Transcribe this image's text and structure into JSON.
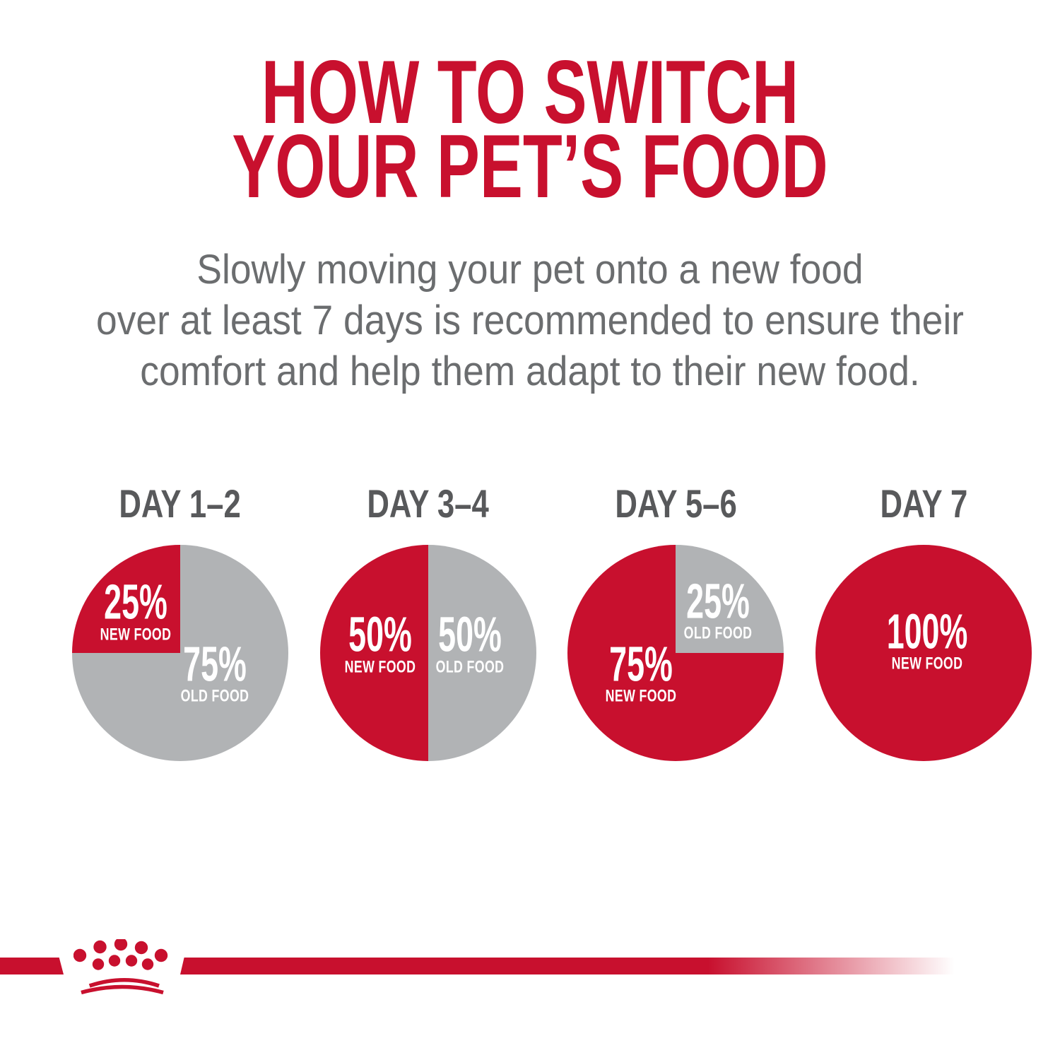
{
  "header": {
    "title": "HOW TO SWITCH\nYOUR PET’S FOOD",
    "subtitle": "Slowly moving your pet onto a new food\nover at least 7 days is recommended to ensure their\ncomfort and help them adapt to their new food."
  },
  "colors": {
    "brand_red": "#C8102E",
    "pie_gray": "#B1B3B5",
    "day_label_gray": "#58595B",
    "subtitle_gray": "#6B6D6F",
    "pie_label_white": "#FFFFFF"
  },
  "chart_data": [
    {
      "type": "pie",
      "title": "DAY 1–2",
      "start_angle_deg": 270,
      "legend_position": "inside",
      "slices": [
        {
          "label": "NEW FOOD",
          "value": 25,
          "display": "25%",
          "color": "#C8102E"
        },
        {
          "label": "OLD FOOD",
          "value": 75,
          "display": "75%",
          "color": "#B1B3B5"
        }
      ]
    },
    {
      "type": "pie",
      "title": "DAY 3–4",
      "start_angle_deg": 180,
      "legend_position": "inside",
      "slices": [
        {
          "label": "NEW FOOD",
          "value": 50,
          "display": "50%",
          "color": "#C8102E"
        },
        {
          "label": "OLD FOOD",
          "value": 50,
          "display": "50%",
          "color": "#B1B3B5"
        }
      ]
    },
    {
      "type": "pie",
      "title": "DAY 5–6",
      "start_angle_deg": 90,
      "legend_position": "inside",
      "slices": [
        {
          "label": "NEW FOOD",
          "value": 75,
          "display": "75%",
          "color": "#C8102E"
        },
        {
          "label": "OLD FOOD",
          "value": 25,
          "display": "25%",
          "color": "#B1B3B5"
        }
      ]
    },
    {
      "type": "pie",
      "title": "DAY 7",
      "start_angle_deg": 0,
      "legend_position": "inside",
      "slices": [
        {
          "label": "NEW FOOD",
          "value": 100,
          "display": "100%",
          "color": "#C8102E"
        }
      ]
    }
  ],
  "footer": {
    "logo_icon": "royal-canin-crown-logo"
  }
}
